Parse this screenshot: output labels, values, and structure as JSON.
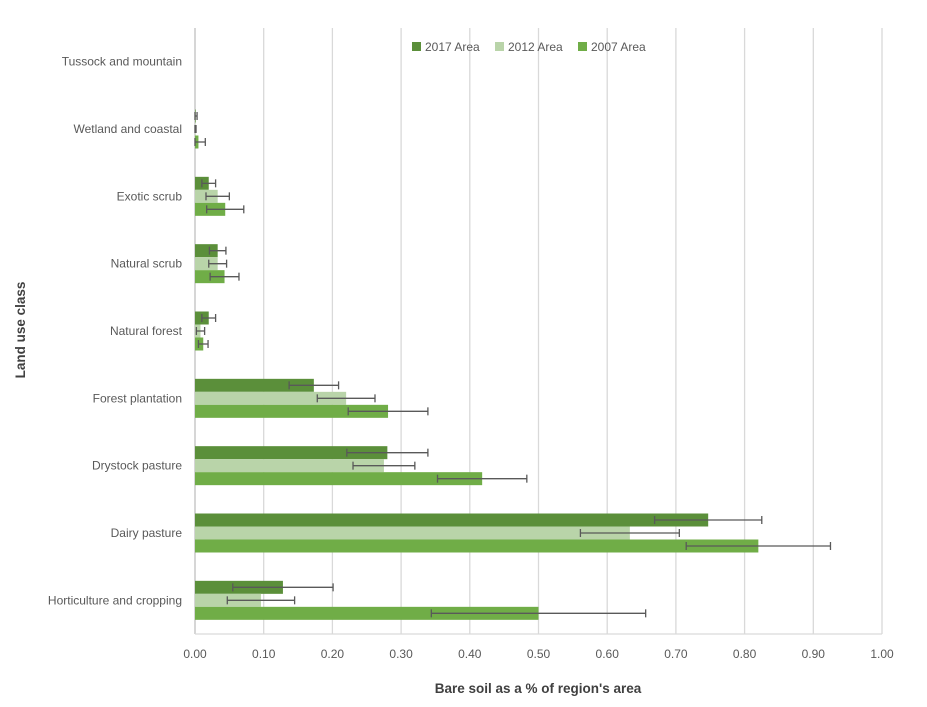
{
  "chart_data": {
    "type": "bar",
    "orientation": "horizontal",
    "title": "",
    "xlabel": "Bare soil as a % of region's area",
    "ylabel": "Land use class",
    "xlim": [
      0,
      1.0
    ],
    "xticks": [
      "0.00",
      "0.10",
      "0.20",
      "0.30",
      "0.40",
      "0.50",
      "0.60",
      "0.70",
      "0.80",
      "0.90",
      "1.00"
    ],
    "grid": true,
    "legend_position": "top",
    "categories": [
      "Tussock and mountain",
      "Wetland and coastal",
      "Exotic scrub",
      "Natural scrub",
      "Natural forest",
      "Forest plantation",
      "Drystock pasture",
      "Dairy pasture",
      "Horticulture and cropping"
    ],
    "series": [
      {
        "name": "2017 Area",
        "color": "#5b8f3a",
        "values": [
          0,
          0.001,
          0.02,
          0.033,
          0.02,
          0.173,
          0.28,
          0.747,
          0.128
        ],
        "errors": [
          0,
          0.002,
          0.01,
          0.012,
          0.01,
          0.036,
          0.059,
          0.078,
          0.073
        ]
      },
      {
        "name": "2012 Area",
        "color": "#b9d4a9",
        "values": [
          0,
          0.0005,
          0.033,
          0.033,
          0.008,
          0.22,
          0.275,
          0.633,
          0.096
        ],
        "errors": [
          0,
          0.001,
          0.017,
          0.013,
          0.006,
          0.042,
          0.045,
          0.072,
          0.049
        ]
      },
      {
        "name": "2007 Area",
        "color": "#70ad47",
        "values": [
          0,
          0.005,
          0.044,
          0.043,
          0.012,
          0.281,
          0.418,
          0.82,
          0.5
        ],
        "errors": [
          0,
          0.01,
          0.027,
          0.021,
          0.007,
          0.058,
          0.065,
          0.105,
          0.156
        ]
      }
    ]
  }
}
